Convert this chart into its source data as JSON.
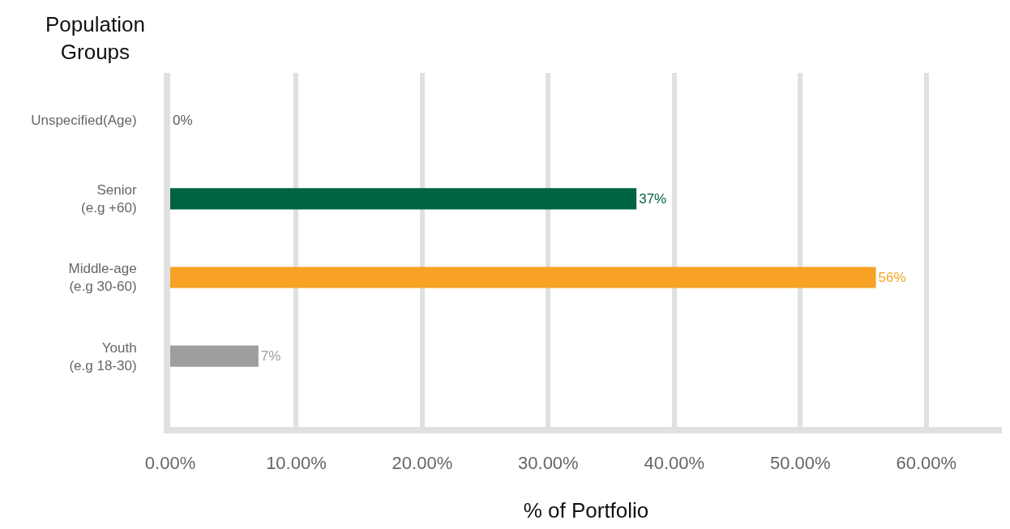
{
  "chart_data": {
    "type": "bar",
    "orientation": "horizontal",
    "ylabel": "Population Groups",
    "xlabel": "% of Portfolio",
    "categories": [
      "Unspecified(Age)",
      "Senior\n(e.g +60)",
      "Middle-age\n(e.g 30-60)",
      "Youth\n(e.g 18-30)"
    ],
    "values": [
      0,
      37,
      56,
      7
    ],
    "colors": [
      "#5a5a5a",
      "#006341",
      "#f7a224",
      "#9e9e9e"
    ],
    "value_labels": [
      "0%",
      "37%",
      "56%",
      "7%"
    ],
    "xlim": [
      0,
      66
    ],
    "xticks": [
      {
        "value": 0,
        "label": "0.00%"
      },
      {
        "value": 10,
        "label": "10.00%"
      },
      {
        "value": 20,
        "label": "20.00%"
      },
      {
        "value": 30,
        "label": "30.00%"
      },
      {
        "value": 40,
        "label": "40.00%"
      },
      {
        "value": 50,
        "label": "50.00%"
      },
      {
        "value": 60,
        "label": "60.00%"
      }
    ],
    "grid": "x"
  }
}
